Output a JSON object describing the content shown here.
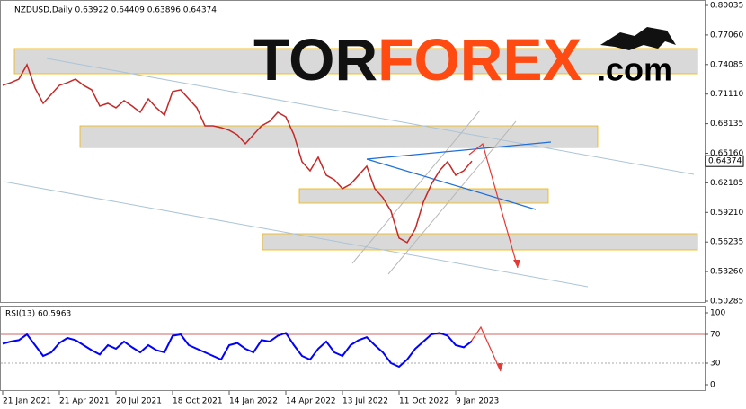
{
  "chart_data": [
    {
      "type": "line",
      "title": "NZDUSD,Daily  0.63922 0.64409 0.63896 0.64374",
      "color": "#c62828",
      "categories": [
        "21 Jan 2021",
        null,
        null,
        null,
        null,
        null,
        null,
        "21 Apr 2021",
        null,
        null,
        null,
        null,
        null,
        null,
        "20 Jul 2021",
        null,
        null,
        null,
        null,
        null,
        null,
        "18 Oct 2021",
        null,
        null,
        null,
        null,
        null,
        null,
        "14 Jan 2022",
        null,
        null,
        null,
        null,
        null,
        null,
        "14 Apr 2022",
        null,
        null,
        null,
        null,
        null,
        null,
        "13 Jul 2022",
        null,
        null,
        null,
        null,
        null,
        null,
        "11 Oct 2022",
        null,
        null,
        null,
        null,
        null,
        null,
        "9 Jan 2023",
        null,
        null
      ],
      "values": [
        0.7199,
        0.7226,
        0.7262,
        0.7407,
        0.7172,
        0.7018,
        0.7108,
        0.7199,
        0.7226,
        0.7262,
        0.7199,
        0.7154,
        0.6991,
        0.7018,
        0.6973,
        0.7045,
        0.6991,
        0.6928,
        0.7063,
        0.6973,
        0.69,
        0.7136,
        0.7154,
        0.7063,
        0.6973,
        0.6792,
        0.6792,
        0.6774,
        0.6747,
        0.6702,
        0.6612,
        0.6702,
        0.6792,
        0.6837,
        0.6928,
        0.6882,
        0.6702,
        0.6431,
        0.634,
        0.6476,
        0.6295,
        0.625,
        0.616,
        0.6205,
        0.6295,
        0.6386,
        0.616,
        0.6069,
        0.5934,
        0.5663,
        0.5617,
        0.5753,
        0.6024,
        0.6205,
        0.634,
        0.6431,
        0.6295,
        0.634,
        0.64374
      ],
      "ylim": [
        0.50285,
        0.80035
      ],
      "yticks": [
        0.80035,
        {
          "value": 0.7706,
          "label": "0.77060"
        },
        0.74085,
        {
          "value": 0.7111,
          "label": "0.71110"
        },
        0.68135,
        {
          "value": 0.6516,
          "label": "0.65160"
        },
        0.62185,
        {
          "value": 0.5921,
          "label": "0.59210"
        },
        0.56235,
        {
          "value": 0.5326,
          "label": "0.53260"
        },
        0.50285
      ],
      "price_tag": 0.64374,
      "logo": [
        "TOR",
        "FOREX",
        ".com"
      ]
    },
    {
      "type": "line",
      "title": "RSI(13) 60.5963",
      "color": "#0000ff",
      "values": [
        57,
        60,
        62,
        70,
        55,
        40,
        45,
        58,
        65,
        62,
        55,
        48,
        42,
        55,
        50,
        60,
        52,
        45,
        55,
        48,
        45,
        68,
        70,
        55,
        50,
        45,
        40,
        35,
        55,
        58,
        50,
        45,
        62,
        60,
        68,
        72,
        55,
        40,
        35,
        50,
        60,
        45,
        40,
        55,
        62,
        66,
        55,
        45,
        30,
        25,
        35,
        50,
        60,
        70,
        72,
        68,
        55,
        52,
        60.5963
      ],
      "ylim": [
        0,
        100
      ],
      "yticks": [
        100,
        70,
        30,
        0
      ]
    }
  ]
}
